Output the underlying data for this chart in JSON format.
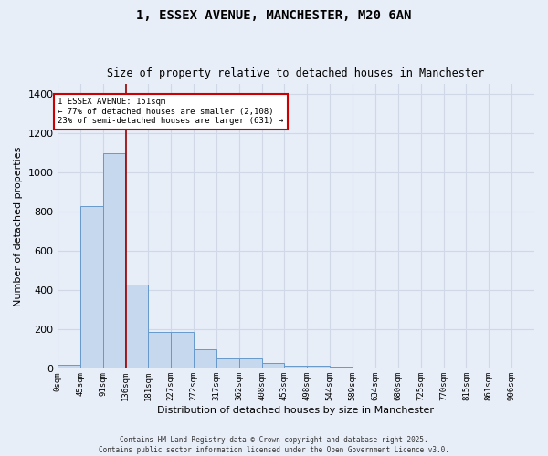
{
  "title": "1, ESSEX AVENUE, MANCHESTER, M20 6AN",
  "subtitle": "Size of property relative to detached houses in Manchester",
  "xlabel": "Distribution of detached houses by size in Manchester",
  "ylabel": "Number of detached properties",
  "bar_color": "#c5d8ed",
  "bar_edge_color": "#6699cc",
  "background_color": "#e8eef8",
  "grid_color": "#d0d8e8",
  "bin_labels": [
    "0sqm",
    "45sqm",
    "91sqm",
    "136sqm",
    "181sqm",
    "227sqm",
    "272sqm",
    "317sqm",
    "362sqm",
    "408sqm",
    "453sqm",
    "498sqm",
    "544sqm",
    "589sqm",
    "634sqm",
    "680sqm",
    "725sqm",
    "770sqm",
    "815sqm",
    "861sqm",
    "906sqm"
  ],
  "bar_values": [
    20,
    830,
    1100,
    430,
    190,
    190,
    100,
    55,
    55,
    30,
    15,
    15,
    10,
    5,
    3,
    2,
    1,
    1,
    1,
    0,
    0
  ],
  "property_size_bin": 3,
  "red_line_x": 136,
  "property_label": "1 ESSEX AVENUE: 151sqm",
  "smaller_pct": 77,
  "smaller_count": 2108,
  "larger_pct": 23,
  "larger_count": 631,
  "red_line_color": "#990000",
  "annotation_box_color": "#cc0000",
  "ylim": [
    0,
    1450
  ],
  "yticks": [
    0,
    200,
    400,
    600,
    800,
    1000,
    1200,
    1400
  ],
  "footer_line1": "Contains HM Land Registry data © Crown copyright and database right 2025.",
  "footer_line2": "Contains public sector information licensed under the Open Government Licence v3.0."
}
